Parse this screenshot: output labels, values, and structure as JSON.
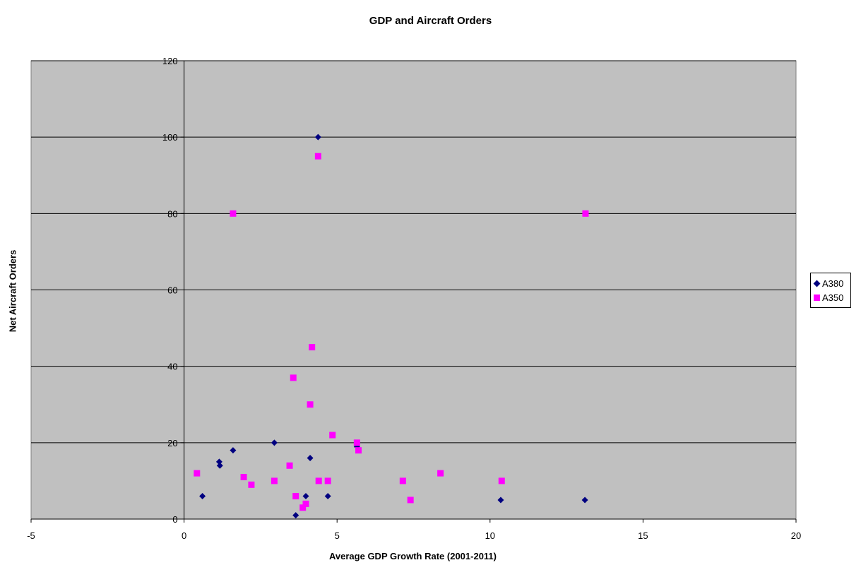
{
  "chart_data": {
    "type": "scatter",
    "title": "GDP and Aircraft Orders",
    "xlabel": "Average GDP Growth Rate (2001-2011)",
    "ylabel": "Net Aircraft Orders",
    "xlim": [
      -5,
      20
    ],
    "ylim": [
      0,
      120
    ],
    "xticks": [
      -5,
      0,
      5,
      10,
      15,
      20
    ],
    "yticks": [
      0,
      20,
      40,
      60,
      80,
      100,
      120
    ],
    "x_tick_labels": [
      "-5",
      "0",
      "5",
      "10",
      "15",
      "20"
    ],
    "y_tick_labels": [
      "0",
      "20",
      "40",
      "60",
      "80",
      "100",
      "120"
    ],
    "grid": "horizontal",
    "plot_background": "#c0c0c0",
    "legend_position": "right",
    "series": [
      {
        "name": "A380",
        "marker": "diamond",
        "color": "#000080",
        "points": [
          [
            0.6,
            6
          ],
          [
            1.15,
            15
          ],
          [
            1.17,
            14
          ],
          [
            1.6,
            18
          ],
          [
            2.95,
            20
          ],
          [
            3.65,
            1
          ],
          [
            3.98,
            6
          ],
          [
            4.12,
            16
          ],
          [
            4.38,
            100
          ],
          [
            4.7,
            6
          ],
          [
            5.65,
            19
          ],
          [
            10.35,
            5
          ],
          [
            13.1,
            5
          ]
        ]
      },
      {
        "name": "A350",
        "marker": "square",
        "color": "#ff00ff",
        "points": [
          [
            0.42,
            12
          ],
          [
            1.6,
            80
          ],
          [
            1.95,
            11
          ],
          [
            2.2,
            9
          ],
          [
            2.95,
            10
          ],
          [
            3.45,
            14
          ],
          [
            3.57,
            37
          ],
          [
            3.65,
            6
          ],
          [
            3.88,
            3
          ],
          [
            3.98,
            4
          ],
          [
            4.12,
            30
          ],
          [
            4.18,
            45
          ],
          [
            4.38,
            95
          ],
          [
            4.4,
            10
          ],
          [
            4.7,
            10
          ],
          [
            4.85,
            22
          ],
          [
            5.65,
            20
          ],
          [
            5.7,
            18
          ],
          [
            7.15,
            10
          ],
          [
            7.4,
            5
          ],
          [
            8.38,
            12
          ],
          [
            10.38,
            10
          ],
          [
            13.12,
            80
          ]
        ]
      }
    ]
  }
}
